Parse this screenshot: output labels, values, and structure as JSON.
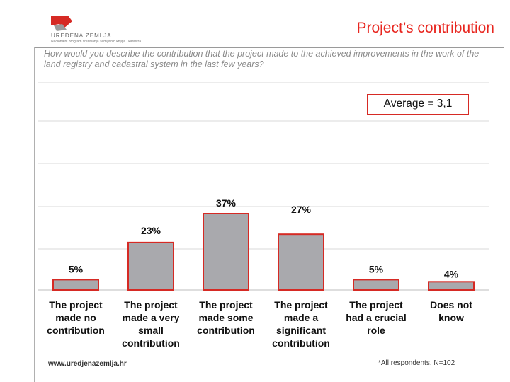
{
  "header": {
    "logo_name": "UREĐENA ZEMLJA",
    "logo_tagline": "Nacionalni program sređivanja zemljišnih knjiga i katastra",
    "title": "Project’s contribution",
    "question": "How would you describe the contribution that the project made to the achieved improvements in the work of the land registry and cadastral system in the last few years?"
  },
  "chart_data": {
    "type": "bar",
    "categories": [
      "The project made no contribution",
      "The project made a very small contribution",
      "The project made some contribution",
      "The project made a significant contribution",
      "The project had a crucial role",
      "Does not know"
    ],
    "category_lines": [
      [
        "The project",
        "made no",
        "contribution"
      ],
      [
        "The project",
        "made a very",
        "small",
        "contribution"
      ],
      [
        "The project",
        "made some",
        "contribution"
      ],
      [
        "The project",
        "made a",
        "significant",
        "contribution"
      ],
      [
        "The project",
        "had a crucial",
        "role"
      ],
      [
        "Does not",
        "know"
      ]
    ],
    "values": [
      5,
      23,
      37,
      27,
      5,
      4
    ],
    "value_labels": [
      "5%",
      "23%",
      "37%",
      "27%",
      "5%",
      "4%"
    ],
    "ylim": [
      0,
      100
    ],
    "grid": true,
    "colors": {
      "bar_fill": "#a9a9ad",
      "bar_edge": "#d62a24",
      "grid": "#d8d8d8"
    },
    "annotation": "Average = 3,1"
  },
  "footer": {
    "url": "www.uredjenazemlja.hr",
    "note": "*All respondents, N=102"
  }
}
